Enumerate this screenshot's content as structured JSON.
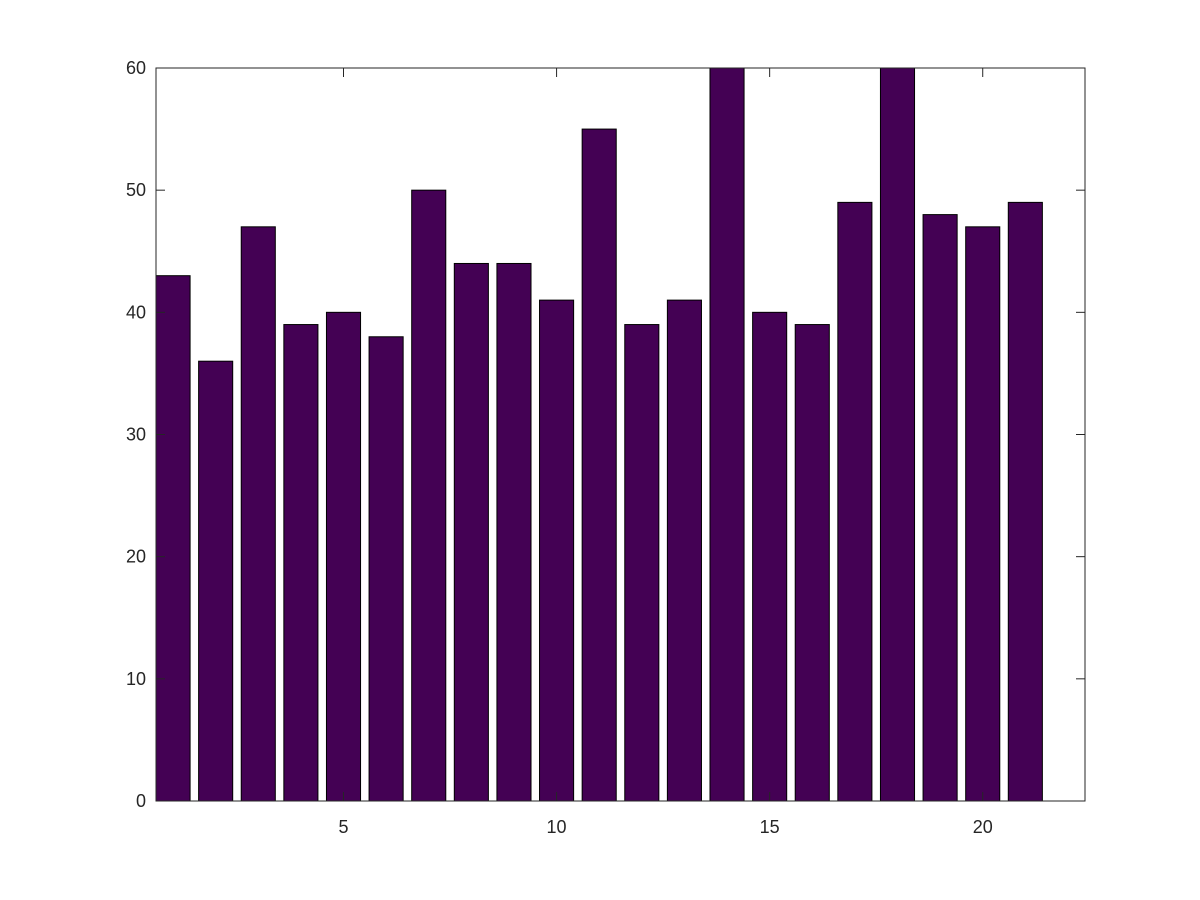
{
  "chart_data": {
    "type": "bar",
    "x": [
      1,
      2,
      3,
      4,
      5,
      6,
      7,
      8,
      9,
      10,
      11,
      12,
      13,
      14,
      15,
      16,
      17,
      18,
      19,
      20,
      21
    ],
    "values": [
      43,
      36,
      47,
      39,
      40,
      38,
      50,
      44,
      44,
      41,
      55,
      39,
      41,
      60,
      40,
      39,
      49,
      60,
      48,
      47,
      49
    ],
    "title": "",
    "xlabel": "",
    "ylabel": "",
    "xlim": [
      0.6,
      22.4
    ],
    "ylim": [
      0,
      60
    ],
    "xticks": [
      5,
      10,
      15,
      20
    ],
    "yticks": [
      0,
      10,
      20,
      30,
      40,
      50,
      60
    ],
    "grid": false,
    "legend": "none",
    "bar_color": "#440154",
    "edge_color": "#000000"
  }
}
